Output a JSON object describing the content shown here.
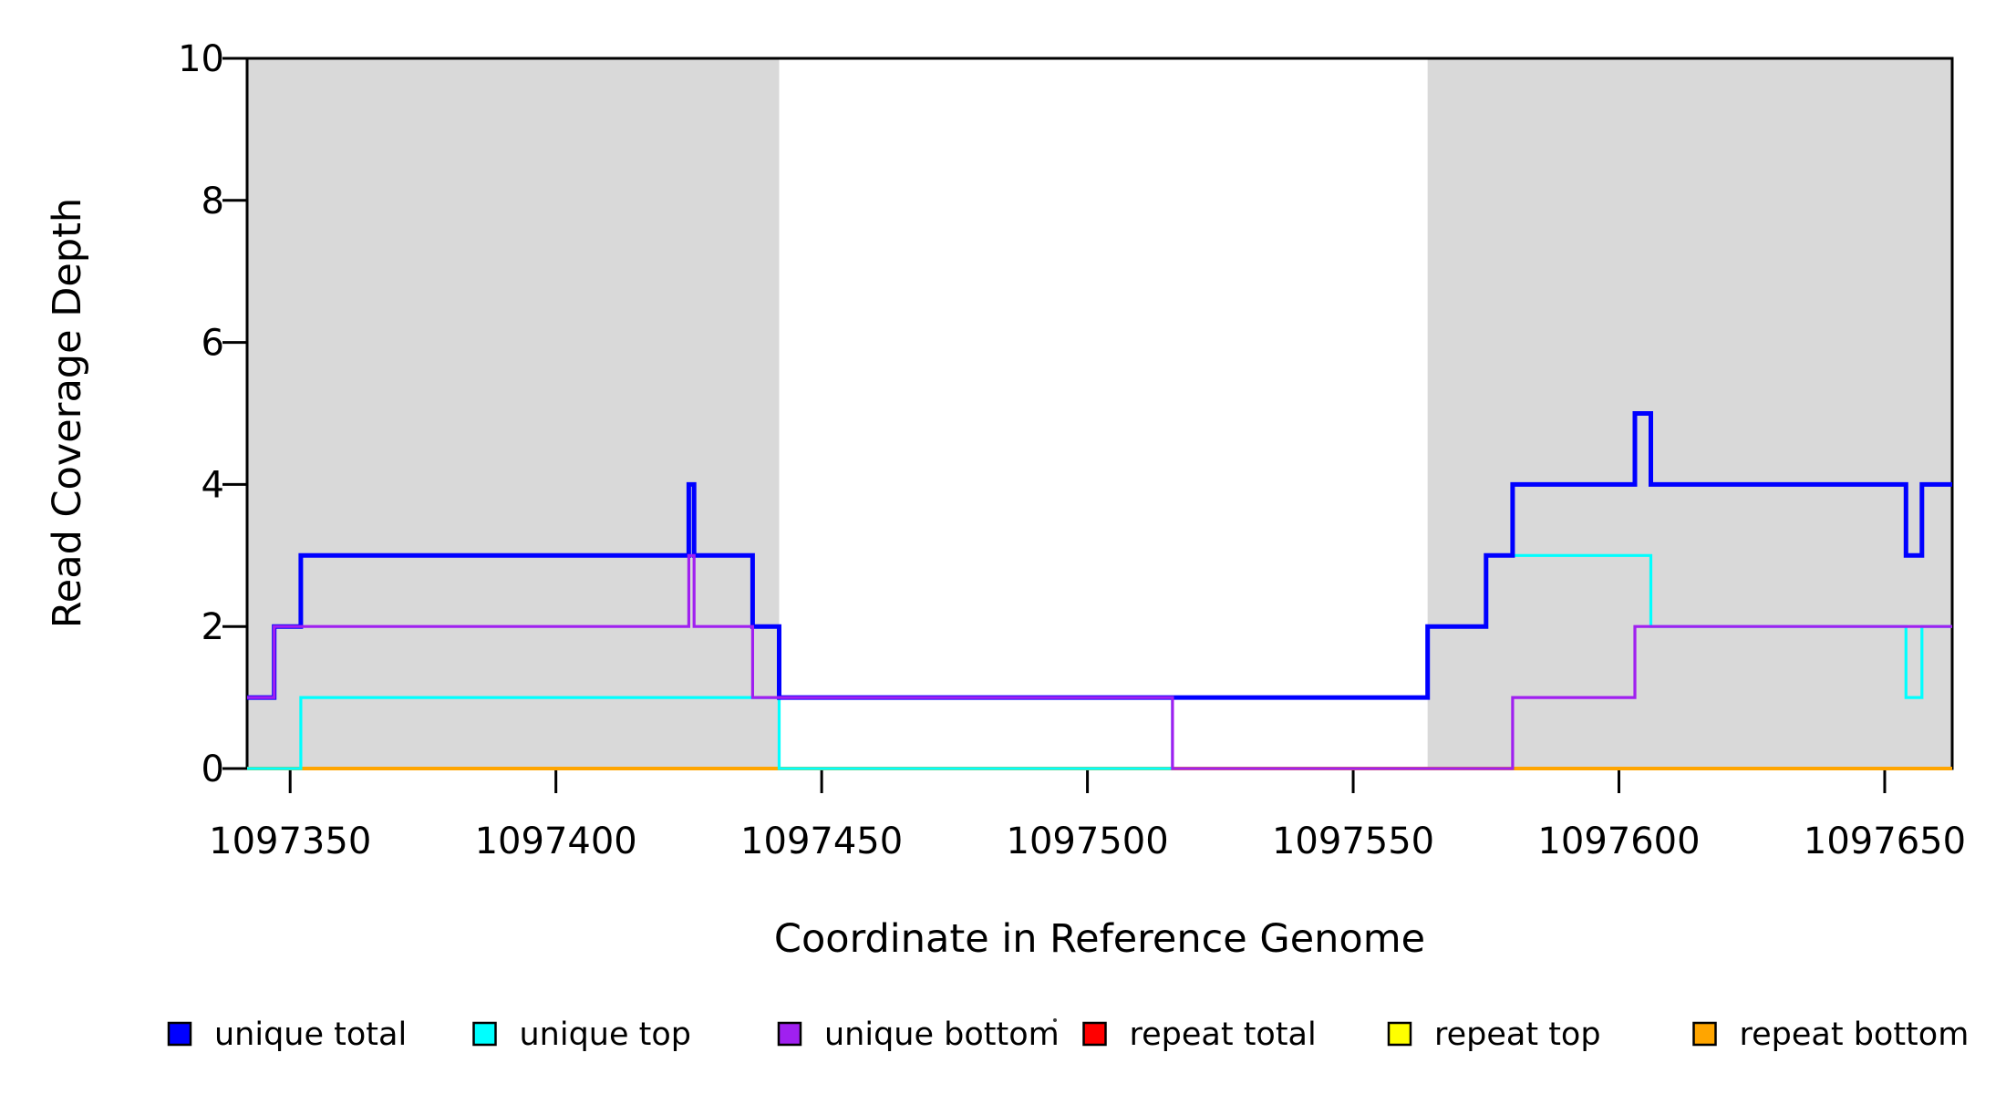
{
  "figure": {
    "background": "#FFFFFF",
    "axis_color": "#000000",
    "highlight_color": "#D9D9D9"
  },
  "chart_data": {
    "type": "line",
    "subtype": "step",
    "title": "",
    "xlabel": "Coordinate in Reference Genome",
    "ylabel": "Read Coverage Depth",
    "xlim": [
      1097341.9,
      1097662.7
    ],
    "ylim": [
      0,
      10
    ],
    "x_ticks": [
      1097350,
      1097400,
      1097450,
      1097500,
      1097550,
      1097600,
      1097650
    ],
    "y_ticks": [
      0,
      2,
      4,
      6,
      8,
      10
    ],
    "grid": false,
    "legend_position": "bottom",
    "highlight_regions": [
      {
        "x0": 1097341.9,
        "x1": 1097442,
        "color": "#D9D9D9"
      },
      {
        "x0": 1097564,
        "x1": 1097662.7,
        "color": "#D9D9D9"
      }
    ],
    "series": [
      {
        "name": "repeat total",
        "color": "#FF0000",
        "line_width": 3,
        "steps": [
          [
            1097341.9,
            0
          ],
          [
            1097662.7,
            0
          ]
        ]
      },
      {
        "name": "repeat top",
        "color": "#FFFF00",
        "line_width": 3,
        "steps": [
          [
            1097341.9,
            0
          ],
          [
            1097662.7,
            0
          ]
        ]
      },
      {
        "name": "repeat bottom",
        "color": "#FFA500",
        "line_width": 4,
        "steps": [
          [
            1097341.9,
            0
          ],
          [
            1097662.7,
            0
          ]
        ]
      },
      {
        "name": "unique top",
        "color": "#00FFFF",
        "line_width": 3.2,
        "steps": [
          [
            1097341.9,
            0
          ],
          [
            1097352,
            1
          ],
          [
            1097442,
            0
          ],
          [
            1097516,
            1
          ],
          [
            1097564,
            2
          ],
          [
            1097575,
            3
          ],
          [
            1097606,
            2
          ],
          [
            1097654,
            1
          ],
          [
            1097657,
            2
          ],
          [
            1097662.7,
            2
          ]
        ]
      },
      {
        "name": "unique total",
        "color": "#0000FF",
        "line_width": 5,
        "steps": [
          [
            1097341.9,
            1
          ],
          [
            1097347,
            2
          ],
          [
            1097352,
            3
          ],
          [
            1097425,
            4
          ],
          [
            1097426,
            3
          ],
          [
            1097437,
            2
          ],
          [
            1097442,
            1
          ],
          [
            1097564,
            2
          ],
          [
            1097575,
            3
          ],
          [
            1097580,
            4
          ],
          [
            1097603,
            5
          ],
          [
            1097606,
            4
          ],
          [
            1097654,
            3
          ],
          [
            1097657,
            4
          ],
          [
            1097662.7,
            4
          ]
        ]
      },
      {
        "name": "unique bottom",
        "color": "#A020F0",
        "line_width": 3.2,
        "steps": [
          [
            1097341.9,
            1
          ],
          [
            1097347,
            2
          ],
          [
            1097425,
            3
          ],
          [
            1097426,
            2
          ],
          [
            1097437,
            1
          ],
          [
            1097516,
            0
          ],
          [
            1097580,
            1
          ],
          [
            1097603,
            2
          ],
          [
            1097662.7,
            2
          ]
        ]
      }
    ],
    "legend": [
      {
        "label": "unique total",
        "color": "#0000FF"
      },
      {
        "label": "unique top",
        "color": "#00FFFF"
      },
      {
        "label": "unique bottom",
        "color": "#A020F0"
      },
      {
        "label": "repeat total",
        "color": "#FF0000"
      },
      {
        "label": "repeat top",
        "color": "#FFFF00"
      },
      {
        "label": "repeat bottom",
        "color": "#FFA500"
      }
    ]
  }
}
